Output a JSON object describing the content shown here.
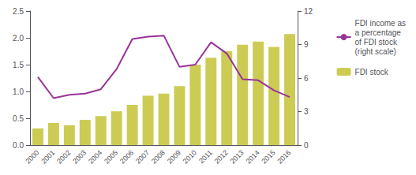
{
  "chart_data": {
    "type": "bar",
    "categories": [
      "2000",
      "2001",
      "2002",
      "2003",
      "2004",
      "2005",
      "2006",
      "2007",
      "2008",
      "2009",
      "2010",
      "2011",
      "2012",
      "2013",
      "2014",
      "2015",
      "2016"
    ],
    "series": [
      {
        "name": "FDI stock",
        "type": "bar",
        "color": "#cccc55",
        "values": [
          0.31,
          0.41,
          0.37,
          0.47,
          0.54,
          0.63,
          0.75,
          0.92,
          0.96,
          1.1,
          1.5,
          1.63,
          1.75,
          1.87,
          1.93,
          1.83,
          2.07
        ]
      },
      {
        "name": "FDI income as\na percentage\nof FDI stock\n(right scale)",
        "type": "line",
        "color": "#993399",
        "axis": "y2",
        "values": [
          6.1,
          4.2,
          4.5,
          4.6,
          5.0,
          6.8,
          9.5,
          9.7,
          9.8,
          7.0,
          7.2,
          9.2,
          8.2,
          5.9,
          5.8,
          4.9,
          4.3
        ]
      }
    ],
    "ylim": [
      0,
      2.5
    ],
    "yticks": [
      {
        "value": 0,
        "label": "0.0"
      },
      0.5,
      {
        "value": 1.0,
        "label": "1.0"
      },
      1.5,
      {
        "value": 2.0,
        "label": "2.0"
      },
      2.5
    ],
    "y2lim": [
      0,
      12
    ],
    "y2ticks": [
      0,
      3,
      6,
      9,
      12
    ],
    "grid": false,
    "legend": "right"
  }
}
